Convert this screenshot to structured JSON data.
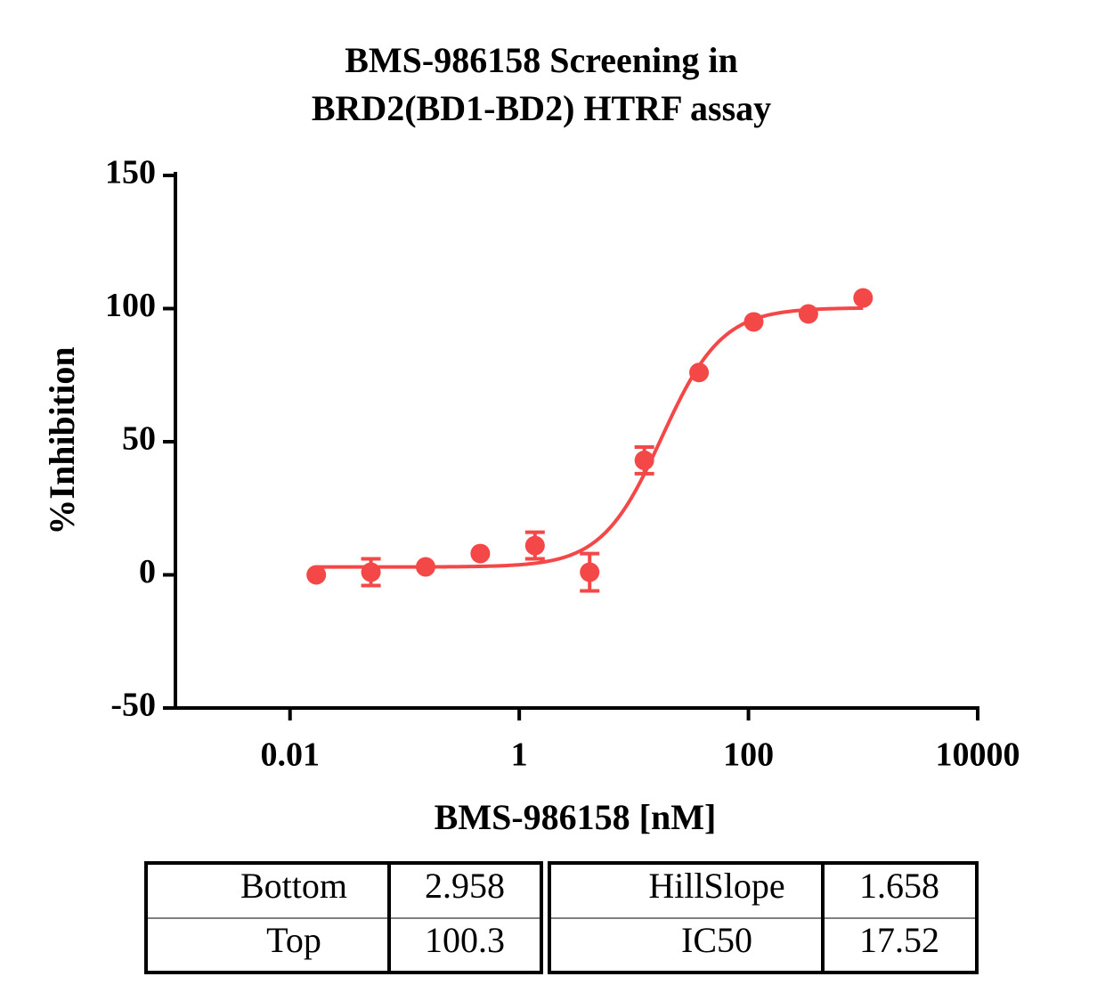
{
  "chart_data": {
    "type": "scatter",
    "title": [
      "BMS-986158 Screening in",
      "BRD2(BD1-BD2) HTRF assay"
    ],
    "x_label": "BMS-986158 [nM]",
    "y_label": "%Inhibition",
    "x_scale": "log",
    "x": [
      0.01694,
      0.0508,
      0.1524,
      0.4572,
      1.372,
      4.115,
      12.35,
      37.04,
      111.1,
      333.3,
      1000
    ],
    "series": [
      {
        "name": "BMS-986158",
        "color": "#f44848",
        "values": [
          0,
          1,
          3,
          8,
          11,
          1,
          43,
          76,
          95,
          98,
          104
        ],
        "errors": [
          null,
          5,
          null,
          null,
          5,
          7,
          5,
          null,
          null,
          null,
          null
        ]
      }
    ],
    "xlim": [
      0.001,
      10000
    ],
    "xticks": [
      0.01,
      1,
      100,
      10000
    ],
    "ylim": [
      -50,
      150
    ],
    "yticks": [
      -50,
      0,
      50,
      100,
      150
    ],
    "fit_params": [
      {
        "name": "Bottom",
        "value": 2.958
      },
      {
        "name": "Top",
        "value": 100.3
      },
      {
        "name": "HillSlope",
        "value": 1.658
      },
      {
        "name": "IC50",
        "value": 17.52
      }
    ]
  }
}
